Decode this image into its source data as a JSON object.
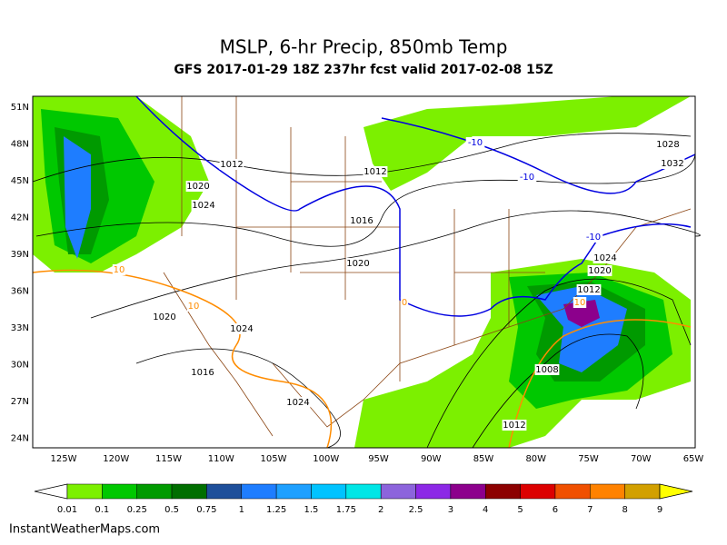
{
  "header": {
    "title": "MSLP, 6-hr Precip, 850mb Temp",
    "subtitle": "GFS 2017-01-29 18Z 237hr fcst valid 2017-02-08 15Z"
  },
  "map": {
    "lat_labels": [
      "51N",
      "48N",
      "45N",
      "42N",
      "39N",
      "36N",
      "33N",
      "30N",
      "27N",
      "24N"
    ],
    "lon_labels": [
      "125W",
      "120W",
      "115W",
      "110W",
      "105W",
      "100W",
      "95W",
      "90W",
      "85W",
      "80W",
      "75W",
      "70W",
      "65W"
    ],
    "isobar_labels": [
      1012,
      1012,
      1016,
      1020,
      1020,
      1024,
      1016,
      1024,
      1008,
      1012,
      1028,
      1032,
      1024,
      1020,
      1012,
      1020,
      1024
    ],
    "temp_labels": [
      -10,
      -10,
      -10,
      10,
      10,
      10,
      0
    ]
  },
  "colorbar": {
    "ticks": [
      0.01,
      0.1,
      0.25,
      0.5,
      0.75,
      1,
      1.25,
      1.5,
      1.75,
      2,
      2.5,
      3,
      4,
      5,
      6,
      7,
      8,
      9
    ],
    "colors": [
      "#7cf000",
      "#00c800",
      "#009a00",
      "#006e00",
      "#1e4f9a",
      "#1e7dff",
      "#1ea0ff",
      "#00c3ff",
      "#00e6e6",
      "#8c64dc",
      "#8c28e6",
      "#8c008c",
      "#8c0000",
      "#dc0000",
      "#f05000",
      "#ff8200",
      "#d2a000",
      "#e6dc00",
      "#ffff00"
    ]
  },
  "footer": {
    "credit": "InstantWeatherMaps.com"
  }
}
